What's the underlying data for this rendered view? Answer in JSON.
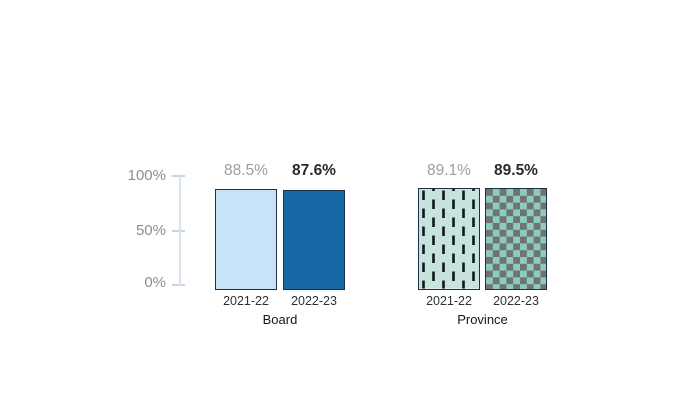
{
  "chart_data": {
    "type": "bar",
    "title": "",
    "xlabel": "",
    "ylabel": "",
    "ylim": [
      0,
      100
    ],
    "yticks": [
      "100%",
      "50%",
      "0%"
    ],
    "legend": "none",
    "grid": false,
    "groups": [
      {
        "label": "Board",
        "categories": [
          "2021-22",
          "2022-23"
        ],
        "values": [
          88.5,
          87.6
        ],
        "value_labels": [
          "88.5%",
          "87.6%"
        ],
        "styles": [
          "solid:light_blue",
          "solid:dark_blue"
        ]
      },
      {
        "label": "Province",
        "categories": [
          "2021-22",
          "2022-23"
        ],
        "values": [
          89.1,
          89.5
        ],
        "value_labels": [
          "89.1%",
          "89.5%"
        ],
        "styles": [
          "pattern:vertical_dashes",
          "pattern:checkerboard"
        ]
      }
    ]
  },
  "colors": {
    "light_blue": "#C6E3F7",
    "dark_blue": "#1568A4",
    "bar_border": "#1F3044",
    "pattern_teal_bg": "#C6E4DD",
    "dash_dark": "#10181E",
    "checker_teal": "#8DCBBF",
    "checker_gray": "#6E7472",
    "axis_line": "#DAE4EC",
    "tick_mark": "#C9D5E0",
    "axis_text_gray": "#8A8E92",
    "value_prev_gray": "#9A9EA2",
    "value_curr_dark": "#2B2B2B"
  }
}
